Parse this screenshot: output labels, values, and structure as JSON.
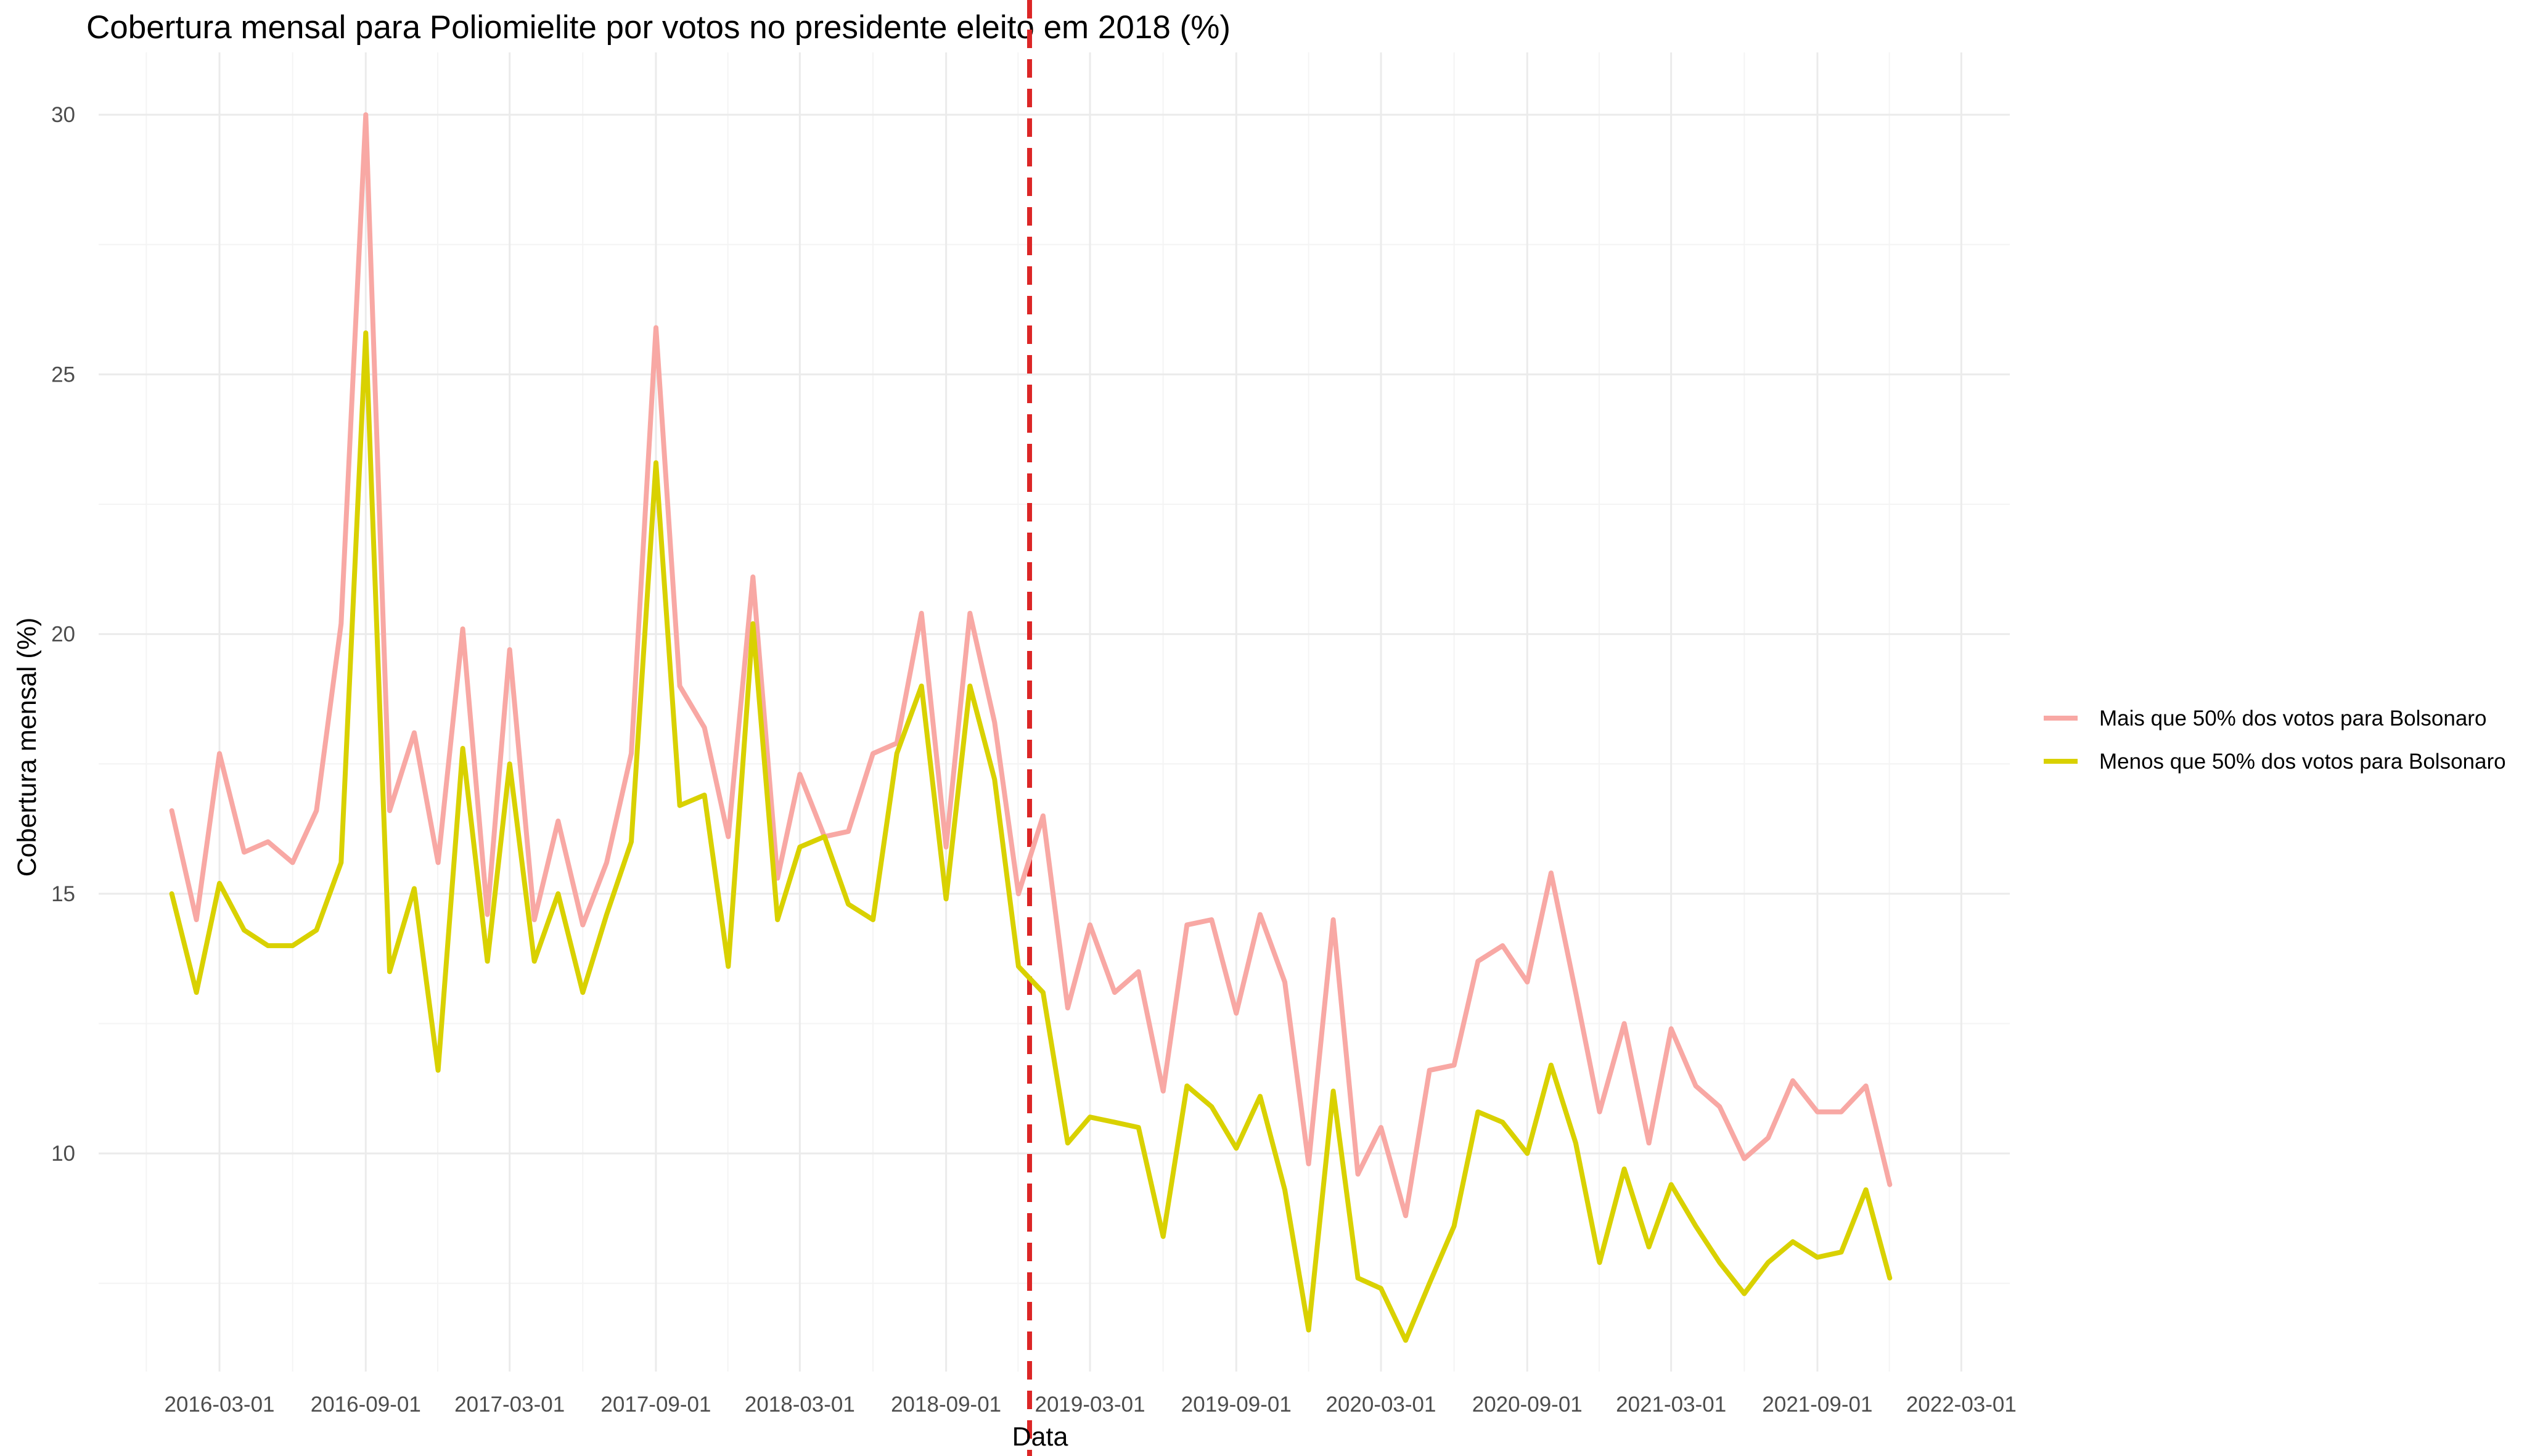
{
  "chart_data": {
    "type": "line",
    "title": "Cobertura mensal para Poliomielite por votos no presidente eleito em 2018 (%)",
    "xlabel": "Data",
    "ylabel": "Cobertura mensal (%)",
    "xlim": [
      "2015-10-01",
      "2022-05-01"
    ],
    "ylim": [
      5.8,
      31.2
    ],
    "grid": true,
    "legend_position": "right",
    "x_tick_labels": [
      "2016-03-01",
      "2016-09-01",
      "2017-03-01",
      "2017-09-01",
      "2018-03-01",
      "2018-09-01",
      "2019-03-01",
      "2019-09-01",
      "2020-03-01",
      "2020-09-01",
      "2021-03-01",
      "2021-09-01",
      "2022-03-01"
    ],
    "y_ticks": [
      10,
      15,
      20,
      25,
      30
    ],
    "reference_line": {
      "x": "2018-12-15",
      "color": "#dc2626",
      "style": "dashed"
    },
    "x": [
      "2016-01-01",
      "2016-02-01",
      "2016-03-01",
      "2016-04-01",
      "2016-05-01",
      "2016-06-01",
      "2016-07-01",
      "2016-08-01",
      "2016-09-01",
      "2016-10-01",
      "2016-11-01",
      "2016-12-01",
      "2017-01-01",
      "2017-02-01",
      "2017-03-01",
      "2017-04-01",
      "2017-05-01",
      "2017-06-01",
      "2017-07-01",
      "2017-08-01",
      "2017-09-01",
      "2017-10-01",
      "2017-11-01",
      "2017-12-01",
      "2018-01-01",
      "2018-02-01",
      "2018-03-01",
      "2018-04-01",
      "2018-05-01",
      "2018-06-01",
      "2018-07-01",
      "2018-08-01",
      "2018-09-01",
      "2018-10-01",
      "2018-11-01",
      "2018-12-01",
      "2019-01-01",
      "2019-02-01",
      "2019-03-01",
      "2019-04-01",
      "2019-05-01",
      "2019-06-01",
      "2019-07-01",
      "2019-08-01",
      "2019-09-01",
      "2019-10-01",
      "2019-11-01",
      "2019-12-01",
      "2020-01-01",
      "2020-02-01",
      "2020-03-01",
      "2020-04-01",
      "2020-05-01",
      "2020-06-01",
      "2020-07-01",
      "2020-08-01",
      "2020-09-01",
      "2020-10-01",
      "2020-11-01",
      "2020-12-01",
      "2021-01-01",
      "2021-02-01",
      "2021-03-01",
      "2021-04-01",
      "2021-05-01",
      "2021-06-01",
      "2021-07-01",
      "2021-08-01",
      "2021-09-01",
      "2021-10-01",
      "2021-11-01",
      "2021-12-01"
    ],
    "series": [
      {
        "name": "Mais que 50% dos votos para Bolsonaro",
        "color": "#f8a8a4",
        "values": [
          16.6,
          14.5,
          17.7,
          15.8,
          16.0,
          15.6,
          16.6,
          20.2,
          30.0,
          16.6,
          18.1,
          15.6,
          20.1,
          14.6,
          19.7,
          14.5,
          16.4,
          14.4,
          15.6,
          17.7,
          25.9,
          19.0,
          18.2,
          16.1,
          21.1,
          15.3,
          17.3,
          16.1,
          16.2,
          17.7,
          17.9,
          20.4,
          15.9,
          20.4,
          18.3,
          15.0,
          16.5,
          12.8,
          14.4,
          13.1,
          13.5,
          11.2,
          14.4,
          14.5,
          12.7,
          14.6,
          13.3,
          9.8,
          14.5,
          9.6,
          10.5,
          8.8,
          11.6,
          11.7,
          13.7,
          14.0,
          13.3,
          15.4,
          13.1,
          10.8,
          12.5,
          10.2,
          12.4,
          11.3,
          10.9,
          9.9,
          10.3,
          11.4,
          10.8,
          10.8,
          11.3,
          9.4
        ]
      },
      {
        "name": "Menos que 50% dos votos para Bolsonaro",
        "color": "#d9d100",
        "values": [
          15.0,
          13.1,
          15.2,
          14.3,
          14.0,
          14.0,
          14.3,
          15.6,
          25.8,
          13.5,
          15.1,
          11.6,
          17.8,
          13.7,
          17.5,
          13.7,
          15.0,
          13.1,
          14.6,
          16.0,
          23.3,
          16.7,
          16.9,
          13.6,
          20.2,
          14.5,
          15.9,
          16.1,
          14.8,
          14.5,
          17.7,
          19.0,
          14.9,
          19.0,
          17.2,
          13.6,
          13.1,
          10.2,
          10.7,
          10.6,
          10.5,
          8.4,
          11.3,
          10.9,
          10.1,
          11.1,
          9.3,
          6.6,
          11.2,
          7.6,
          7.4,
          6.4,
          7.5,
          8.6,
          10.8,
          10.6,
          10.0,
          11.7,
          10.2,
          7.9,
          9.7,
          8.2,
          9.4,
          8.6,
          7.9,
          7.3,
          7.9,
          8.3,
          8.0,
          8.1,
          9.3,
          7.6
        ]
      }
    ]
  }
}
